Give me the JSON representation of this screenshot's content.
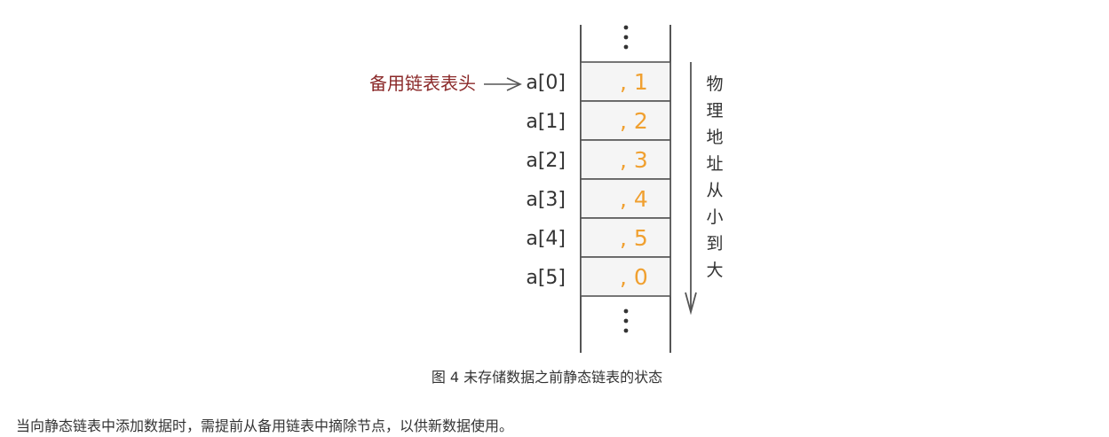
{
  "diagram": {
    "head_label": "备用链表表头",
    "rows": [
      {
        "label": "a[0]",
        "value": ", 1"
      },
      {
        "label": "a[1]",
        "value": ", 2"
      },
      {
        "label": "a[2]",
        "value": ", 3"
      },
      {
        "label": "a[3]",
        "value": ", 4"
      },
      {
        "label": "a[4]",
        "value": ", 5"
      },
      {
        "label": "a[5]",
        "value": ", 0"
      }
    ],
    "side_label": [
      "物",
      "理",
      "地",
      "址",
      "从",
      "小",
      "到",
      "大"
    ],
    "colors": {
      "head_label": "#8b2a2a",
      "value": "#f0a030",
      "cell_fill": "#f5f5f5",
      "line": "#555555",
      "text": "#333333"
    }
  },
  "caption": "图 4 未存储数据之前静态链表的状态",
  "paragraph": "当向静态链表中添加数据时，需提前从备用链表中摘除节点，以供新数据使用。"
}
